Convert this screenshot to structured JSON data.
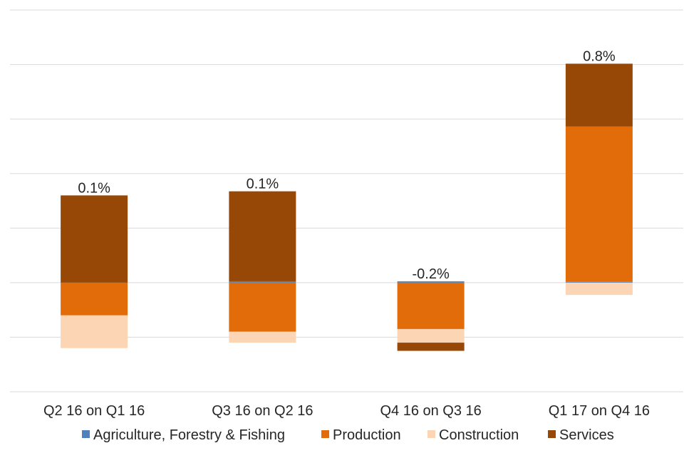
{
  "chart_data": {
    "type": "bar",
    "stacked": true,
    "categories": [
      "Q2 16 on Q1 16",
      "Q3 16 on Q2 16",
      "Q4 16 on Q3 16",
      "Q1 17 on Q4 16"
    ],
    "totals_labels": [
      "0.1%",
      "0.1%",
      "-0.2%",
      "0.8%"
    ],
    "series": [
      {
        "name": "Agriculture, Forestry & Fishing",
        "color": "#4f81bd",
        "values": [
          0.0,
          0.005,
          0.005,
          0.003
        ]
      },
      {
        "name": "Production",
        "color": "#e36c0a",
        "values": [
          -0.12,
          -0.18,
          -0.17,
          0.57
        ]
      },
      {
        "name": "Construction",
        "color": "#fcd5b5",
        "values": [
          -0.12,
          -0.04,
          -0.05,
          -0.045
        ]
      },
      {
        "name": "Services",
        "color": "#974706",
        "values": [
          0.32,
          0.33,
          -0.03,
          0.23
        ]
      }
    ],
    "ylim": [
      -0.4,
      1.0
    ],
    "grid": true,
    "legend_position": "bottom"
  }
}
